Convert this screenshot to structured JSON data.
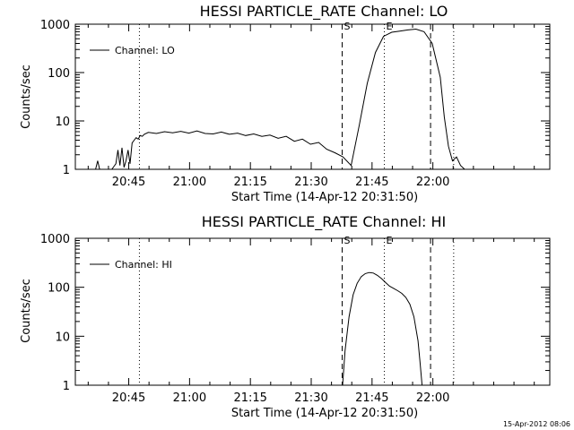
{
  "chart_data": [
    {
      "type": "line",
      "title": "HESSI PARTICLE_RATE Channel: LO",
      "xlabel": "Start Time (14-Apr-12 20:31:50)",
      "ylabel": "Counts/sec",
      "x_unit": "minutes since 20:31:50",
      "xlim": [
        0,
        117
      ],
      "ylim": [
        1,
        1000
      ],
      "yscale": "log",
      "xticks": [
        "20:45",
        "21:00",
        "21:15",
        "21:30",
        "21:45",
        "22:00"
      ],
      "xtick_values": [
        13.17,
        28.17,
        43.17,
        58.17,
        73.17,
        88.17
      ],
      "yticks": [
        "1",
        "10",
        "100",
        "1000"
      ],
      "ytick_values": [
        1,
        10,
        100,
        1000
      ],
      "legend": "top-left",
      "series": [
        {
          "name": "Channel: LO",
          "x": [
            0.0,
            5.0,
            5.5,
            6.0,
            9.0,
            10.0,
            10.5,
            11.0,
            11.5,
            12.0,
            12.5,
            13.0,
            13.5,
            14.0,
            14.5,
            15.0,
            15.5,
            16.0,
            16.5,
            17.0,
            18,
            20,
            22,
            24,
            26,
            28,
            30,
            32,
            34,
            36,
            38,
            40,
            42,
            44,
            46,
            48,
            50,
            52,
            54,
            56,
            58,
            60,
            62,
            64,
            66,
            68,
            70,
            72,
            74,
            76,
            78,
            80,
            82,
            84,
            86,
            88,
            90,
            91,
            92,
            93,
            94,
            95,
            96,
            117
          ],
          "y": [
            1,
            1,
            1.5,
            1,
            1,
            1.3,
            2.5,
            1.2,
            2.8,
            1.1,
            1.5,
            2.5,
            1.3,
            3.5,
            4,
            4.5,
            4.2,
            5,
            4.8,
            5.3,
            5.8,
            5.5,
            6,
            5.7,
            6.1,
            5.6,
            6.2,
            5.5,
            5.4,
            5.9,
            5.3,
            5.6,
            5.0,
            5.4,
            4.8,
            5.1,
            4.4,
            4.8,
            3.8,
            4.2,
            3.3,
            3.6,
            2.6,
            2.2,
            1.8,
            1.2,
            8,
            60,
            260,
            560,
            680,
            720,
            760,
            790,
            700,
            400,
            80,
            12,
            3,
            1.5,
            1.8,
            1.2,
            1,
            1
          ]
        }
      ],
      "markers": [
        {
          "label": "S",
          "x": 65.8,
          "style": "dashed"
        },
        {
          "label": "E",
          "x": 76.2,
          "style": "dotted"
        }
      ],
      "extra_lines": [
        {
          "x": 15.8,
          "style": "dotted"
        },
        {
          "x": 87.6,
          "style": "dashed"
        },
        {
          "x": 93.3,
          "style": "dotted"
        }
      ]
    },
    {
      "type": "line",
      "title": "HESSI PARTICLE_RATE Channel: HI",
      "xlabel": "Start Time (14-Apr-12 20:31:50)",
      "ylabel": "Counts/sec",
      "x_unit": "minutes since 20:31:50",
      "xlim": [
        0,
        117
      ],
      "ylim": [
        1,
        1000
      ],
      "yscale": "log",
      "xticks": [
        "20:45",
        "21:00",
        "21:15",
        "21:30",
        "21:45",
        "22:00"
      ],
      "xtick_values": [
        13.17,
        28.17,
        43.17,
        58.17,
        73.17,
        88.17
      ],
      "yticks": [
        "1",
        "10",
        "100",
        "1000"
      ],
      "ytick_values": [
        1,
        10,
        100,
        1000
      ],
      "legend": "top-left",
      "series": [
        {
          "name": "Channel: HI",
          "x": [
            65.9,
            66.5,
            67.5,
            68.5,
            69.5,
            70.5,
            71.5,
            72.5,
            73.5,
            74.5,
            75.5,
            76.5,
            77.5,
            78.5,
            79.5,
            80.5,
            81.5,
            82.5,
            83.5,
            84.5,
            85.0,
            85.5
          ],
          "y": [
            1,
            5,
            25,
            70,
            120,
            165,
            190,
            200,
            195,
            175,
            150,
            125,
            105,
            95,
            85,
            75,
            62,
            45,
            25,
            8,
            3,
            1
          ]
        }
      ],
      "markers": [
        {
          "label": "S",
          "x": 65.8,
          "style": "dashed"
        },
        {
          "label": "E",
          "x": 76.2,
          "style": "dotted"
        }
      ],
      "extra_lines": [
        {
          "x": 15.8,
          "style": "dotted"
        },
        {
          "x": 87.6,
          "style": "dashed"
        },
        {
          "x": 93.3,
          "style": "dotted"
        }
      ]
    }
  ],
  "footer": {
    "timestamp": "15-Apr-2012 08:06"
  }
}
